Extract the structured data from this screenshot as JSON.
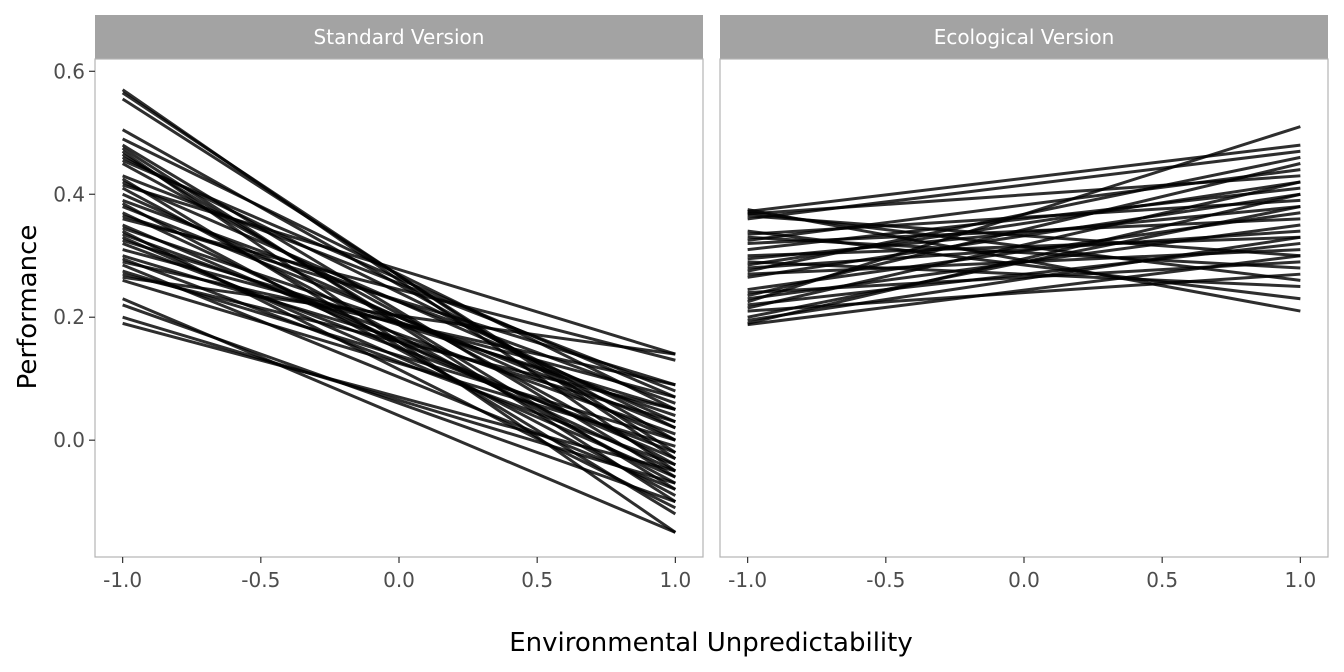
{
  "chart_data": {
    "type": "line",
    "xlabel": "Environmental Unpredictability",
    "ylabel": "Performance",
    "xlim": [
      -1.1,
      1.1
    ],
    "ylim": [
      -0.19,
      0.62
    ],
    "xticks": [
      -1.0,
      -0.5,
      0.0,
      0.5,
      1.0
    ],
    "xtick_labels": [
      "-1.0",
      "-0.5",
      "0.0",
      "0.5",
      "1.0"
    ],
    "yticks": [
      0.0,
      0.2,
      0.4,
      0.6
    ],
    "ytick_labels": [
      "0.0",
      "0.2",
      "0.4",
      "0.6"
    ],
    "grid": false,
    "line_color": "#000000",
    "strip_color": "#a3a3a3",
    "panels": [
      {
        "title": "Standard Version",
        "lines": [
          [
            0.57,
            -0.05
          ],
          [
            0.565,
            -0.03
          ],
          [
            0.555,
            -0.02
          ],
          [
            0.505,
            0.0
          ],
          [
            0.49,
            0.05
          ],
          [
            0.48,
            -0.06
          ],
          [
            0.475,
            -0.1
          ],
          [
            0.47,
            -0.15
          ],
          [
            0.465,
            -0.08
          ],
          [
            0.46,
            0.02
          ],
          [
            0.455,
            0.07
          ],
          [
            0.45,
            -0.04
          ],
          [
            0.43,
            0.08
          ],
          [
            0.425,
            -0.12
          ],
          [
            0.42,
            0.03
          ],
          [
            0.415,
            0.14
          ],
          [
            0.41,
            -0.07
          ],
          [
            0.4,
            0.0
          ],
          [
            0.39,
            0.06
          ],
          [
            0.385,
            -0.09
          ],
          [
            0.38,
            0.02
          ],
          [
            0.37,
            -0.05
          ],
          [
            0.365,
            0.09
          ],
          [
            0.36,
            0.13
          ],
          [
            0.35,
            -0.03
          ],
          [
            0.345,
            0.04
          ],
          [
            0.34,
            -0.11
          ],
          [
            0.335,
            0.01
          ],
          [
            0.33,
            -0.06
          ],
          [
            0.325,
            0.05
          ],
          [
            0.32,
            -0.02
          ],
          [
            0.31,
            0.07
          ],
          [
            0.3,
            0.03
          ],
          [
            0.295,
            -0.04
          ],
          [
            0.29,
            0.09
          ],
          [
            0.285,
            -0.08
          ],
          [
            0.275,
            0.0
          ],
          [
            0.27,
            0.05
          ],
          [
            0.265,
            0.14
          ],
          [
            0.26,
            -0.01
          ],
          [
            0.23,
            -0.15
          ],
          [
            0.22,
            -0.1
          ],
          [
            0.2,
            -0.07
          ],
          [
            0.19,
            -0.05
          ]
        ]
      },
      {
        "title": "Ecological Version",
        "lines": [
          [
            0.375,
            0.21
          ],
          [
            0.372,
            0.48
          ],
          [
            0.37,
            0.26
          ],
          [
            0.368,
            0.43
          ],
          [
            0.365,
            0.3
          ],
          [
            0.36,
            0.47
          ],
          [
            0.34,
            0.23
          ],
          [
            0.335,
            0.39
          ],
          [
            0.33,
            0.28
          ],
          [
            0.325,
            0.44
          ],
          [
            0.32,
            0.36
          ],
          [
            0.31,
            0.41
          ],
          [
            0.3,
            0.33
          ],
          [
            0.295,
            0.38
          ],
          [
            0.29,
            0.25
          ],
          [
            0.285,
            0.42
          ],
          [
            0.28,
            0.34
          ],
          [
            0.275,
            0.46
          ],
          [
            0.27,
            0.31
          ],
          [
            0.265,
            0.4
          ],
          [
            0.245,
            0.37
          ],
          [
            0.24,
            0.29
          ],
          [
            0.235,
            0.45
          ],
          [
            0.23,
            0.35
          ],
          [
            0.225,
            0.51
          ],
          [
            0.22,
            0.32
          ],
          [
            0.215,
            0.42
          ],
          [
            0.21,
            0.27
          ],
          [
            0.2,
            0.38
          ],
          [
            0.195,
            0.33
          ],
          [
            0.19,
            0.4
          ],
          [
            0.188,
            0.3
          ]
        ]
      }
    ]
  }
}
